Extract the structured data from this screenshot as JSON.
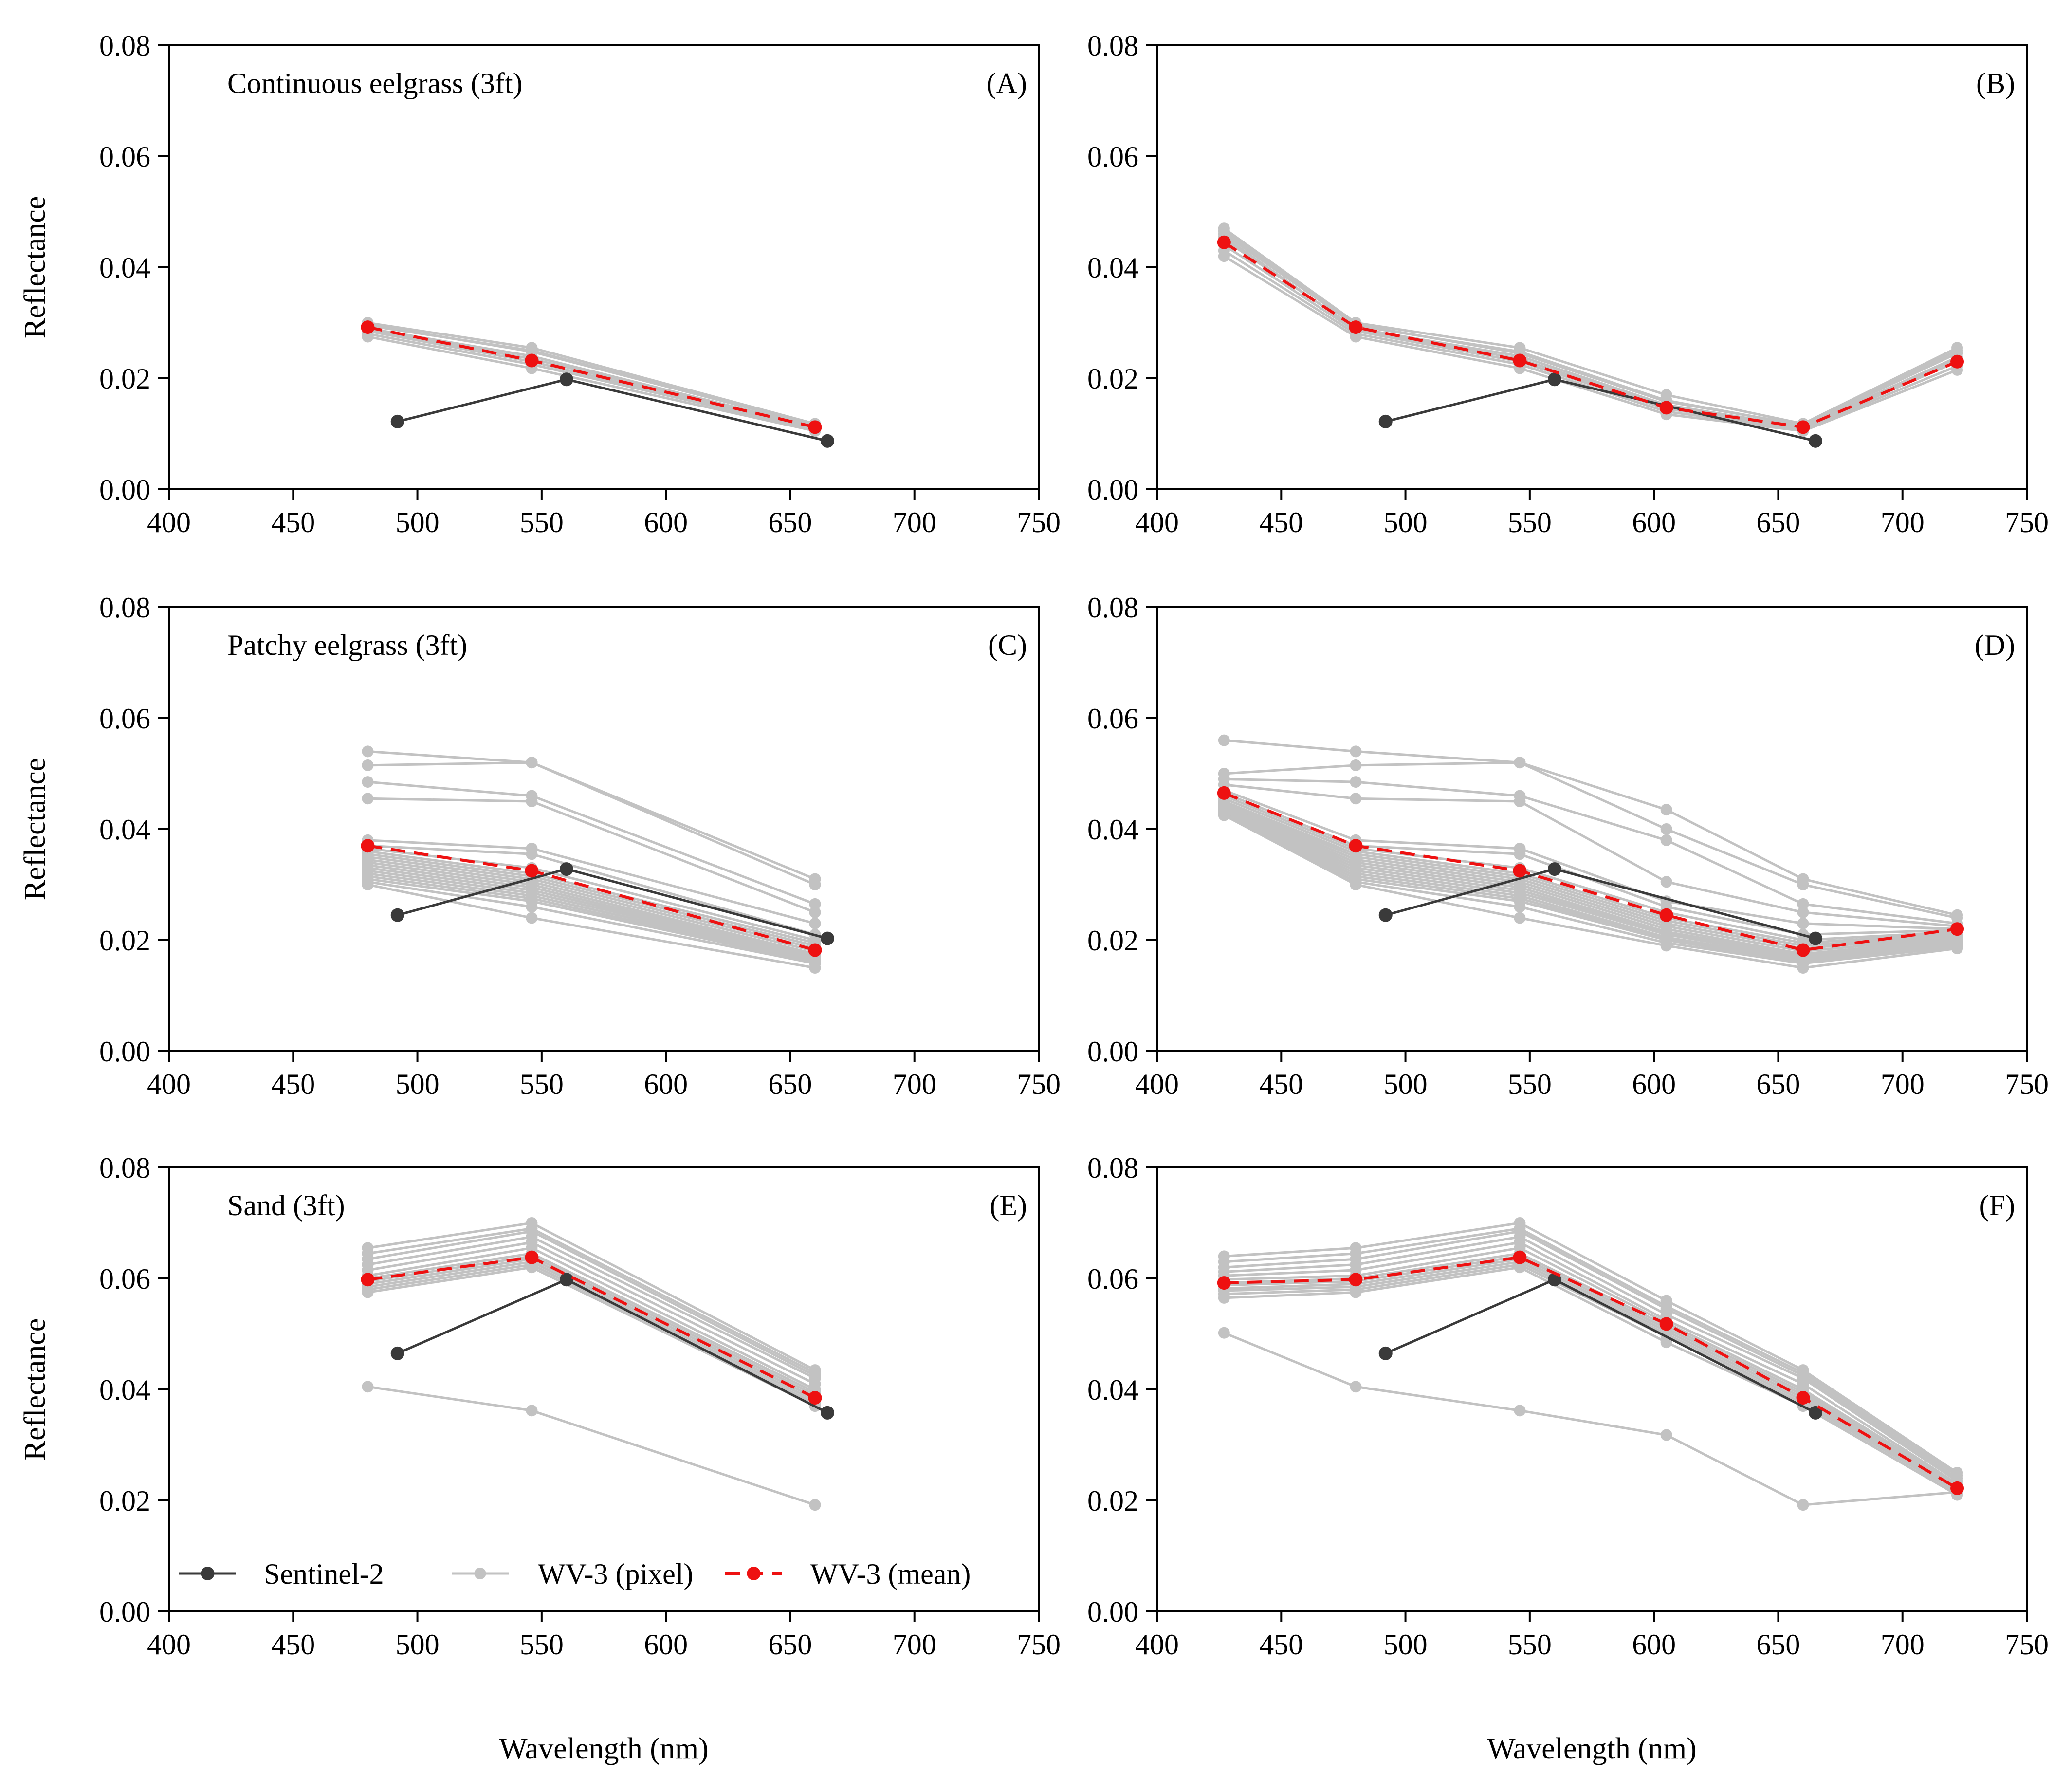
{
  "chart_data": [
    {
      "id": "A",
      "type": "line",
      "tag": "(A)",
      "title": "Continuous eelgrass (3ft)",
      "ylabel": "Reflectance",
      "xlabel": "",
      "xlim": [
        400,
        750
      ],
      "ylim": [
        0,
        0.08
      ],
      "xticks": [
        "400",
        "450",
        "500",
        "550",
        "600",
        "650",
        "700",
        "750"
      ],
      "yticks": [
        "0.00",
        "0.02",
        "0.04",
        "0.06",
        "0.08"
      ],
      "series": [
        {
          "name": "WV-3 (pixel)",
          "style": "pixel",
          "x": [
            480,
            546,
            660
          ],
          "lines": [
            [
              0.03,
              0.0255,
              0.0118
            ],
            [
              0.0295,
              0.025,
              0.0115
            ],
            [
              0.029,
              0.024,
              0.0112
            ],
            [
              0.0285,
              0.023,
              0.011
            ],
            [
              0.028,
              0.0225,
              0.0108
            ],
            [
              0.0275,
              0.0218,
              0.0105
            ],
            [
              0.0288,
              0.0235,
              0.0113
            ],
            [
              0.0297,
              0.0248,
              0.0116
            ]
          ]
        },
        {
          "name": "Sentinel-2",
          "style": "s2",
          "x": [
            492,
            560,
            665
          ],
          "values": [
            0.0122,
            0.0198,
            0.0087
          ]
        },
        {
          "name": "WV-3 (mean)",
          "style": "mean",
          "x": [
            480,
            546,
            660
          ],
          "values": [
            0.0292,
            0.0232,
            0.0112
          ]
        }
      ]
    },
    {
      "id": "B",
      "type": "line",
      "tag": "(B)",
      "title": "",
      "ylabel": "",
      "xlabel": "",
      "xlim": [
        400,
        750
      ],
      "ylim": [
        0,
        0.08
      ],
      "xticks": [
        "400",
        "450",
        "500",
        "550",
        "600",
        "650",
        "700",
        "750"
      ],
      "yticks": [
        "0.00",
        "0.02",
        "0.04",
        "0.06",
        "0.08"
      ],
      "series": [
        {
          "name": "WV-3 (pixel)",
          "style": "pixel",
          "x": [
            427,
            480,
            546,
            605,
            660,
            722
          ],
          "lines": [
            [
              0.047,
              0.03,
              0.0255,
              0.017,
              0.0118,
              0.0255
            ],
            [
              0.046,
              0.0295,
              0.0248,
              0.016,
              0.0115,
              0.0245
            ],
            [
              0.045,
              0.029,
              0.024,
              0.0152,
              0.0112,
              0.0238
            ],
            [
              0.044,
              0.0285,
              0.023,
              0.0145,
              0.011,
              0.023
            ],
            [
              0.043,
              0.028,
              0.0225,
              0.014,
              0.0108,
              0.0222
            ],
            [
              0.042,
              0.0275,
              0.0218,
              0.0135,
              0.0105,
              0.0215
            ],
            [
              0.0455,
              0.0288,
              0.0235,
              0.0148,
              0.0113,
              0.0235
            ],
            [
              0.0465,
              0.0297,
              0.0245,
              0.0158,
              0.0116,
              0.025
            ]
          ]
        },
        {
          "name": "Sentinel-2",
          "style": "s2",
          "x": [
            492,
            560,
            665
          ],
          "values": [
            0.0122,
            0.0198,
            0.0087
          ]
        },
        {
          "name": "WV-3 (mean)",
          "style": "mean",
          "x": [
            427,
            480,
            546,
            605,
            660,
            722
          ],
          "values": [
            0.0445,
            0.0292,
            0.0232,
            0.0147,
            0.0112,
            0.023
          ]
        }
      ]
    },
    {
      "id": "C",
      "type": "line",
      "tag": "(C)",
      "title": "Patchy eelgrass (3ft)",
      "ylabel": "Reflectance",
      "xlabel": "",
      "xlim": [
        400,
        750
      ],
      "ylim": [
        0,
        0.08
      ],
      "xticks": [
        "400",
        "450",
        "500",
        "550",
        "600",
        "650",
        "700",
        "750"
      ],
      "yticks": [
        "0.00",
        "0.02",
        "0.04",
        "0.06",
        "0.08"
      ],
      "series": [
        {
          "name": "WV-3 (pixel)",
          "style": "pixel",
          "x": [
            480,
            546,
            660
          ],
          "lines": [
            [
              0.054,
              0.052,
              0.031
            ],
            [
              0.0515,
              0.052,
              0.03
            ],
            [
              0.0485,
              0.046,
              0.0265
            ],
            [
              0.0455,
              0.045,
              0.025
            ],
            [
              0.038,
              0.0365,
              0.023
            ],
            [
              0.037,
              0.0355,
              0.021
            ],
            [
              0.0365,
              0.033,
              0.02
            ],
            [
              0.036,
              0.032,
              0.0195
            ],
            [
              0.0355,
              0.0315,
              0.019
            ],
            [
              0.035,
              0.031,
              0.0185
            ],
            [
              0.0345,
              0.0305,
              0.018
            ],
            [
              0.034,
              0.03,
              0.0175
            ],
            [
              0.0335,
              0.0295,
              0.0172
            ],
            [
              0.033,
              0.029,
              0.017
            ],
            [
              0.0325,
              0.0285,
              0.0168
            ],
            [
              0.032,
              0.028,
              0.0165
            ],
            [
              0.0315,
              0.0275,
              0.0162
            ],
            [
              0.031,
              0.027,
              0.016
            ],
            [
              0.0305,
              0.026,
              0.0158
            ],
            [
              0.03,
              0.024,
              0.015
            ]
          ]
        },
        {
          "name": "Sentinel-2",
          "style": "s2",
          "x": [
            492,
            560,
            665
          ],
          "values": [
            0.0245,
            0.0328,
            0.0203
          ]
        },
        {
          "name": "WV-3 (mean)",
          "style": "mean",
          "x": [
            480,
            546,
            660
          ],
          "values": [
            0.037,
            0.0325,
            0.0182
          ]
        }
      ]
    },
    {
      "id": "D",
      "type": "line",
      "tag": "(D)",
      "title": "",
      "ylabel": "",
      "xlabel": "",
      "xlim": [
        400,
        750
      ],
      "ylim": [
        0,
        0.08
      ],
      "xticks": [
        "400",
        "450",
        "500",
        "550",
        "600",
        "650",
        "700",
        "750"
      ],
      "yticks": [
        "0.00",
        "0.02",
        "0.04",
        "0.06",
        "0.08"
      ],
      "series": [
        {
          "name": "WV-3 (pixel)",
          "style": "pixel",
          "x": [
            427,
            480,
            546,
            605,
            660,
            722
          ],
          "lines": [
            [
              0.056,
              0.054,
              0.052,
              0.0435,
              0.031,
              0.0245
            ],
            [
              0.05,
              0.0515,
              0.052,
              0.04,
              0.03,
              0.024
            ],
            [
              0.049,
              0.0485,
              0.046,
              0.038,
              0.0265,
              0.023
            ],
            [
              0.048,
              0.0455,
              0.045,
              0.0305,
              0.025,
              0.0225
            ],
            [
              0.047,
              0.038,
              0.0365,
              0.027,
              0.023,
              0.022
            ],
            [
              0.0465,
              0.037,
              0.0355,
              0.026,
              0.021,
              0.0218
            ],
            [
              0.046,
              0.0365,
              0.033,
              0.025,
              0.02,
              0.0215
            ],
            [
              0.0455,
              0.036,
              0.032,
              0.024,
              0.0195,
              0.0212
            ],
            [
              0.045,
              0.0355,
              0.0315,
              0.0235,
              0.019,
              0.021
            ],
            [
              0.0448,
              0.035,
              0.031,
              0.023,
              0.0185,
              0.0208
            ],
            [
              0.0445,
              0.0345,
              0.0305,
              0.0225,
              0.018,
              0.0205
            ],
            [
              0.0442,
              0.034,
              0.03,
              0.022,
              0.0175,
              0.0202
            ],
            [
              0.044,
              0.0335,
              0.0295,
              0.0215,
              0.0172,
              0.02
            ],
            [
              0.0438,
              0.033,
              0.029,
              0.0212,
              0.017,
              0.0198
            ],
            [
              0.0436,
              0.0325,
              0.0285,
              0.021,
              0.0168,
              0.0196
            ],
            [
              0.0434,
              0.032,
              0.028,
              0.0205,
              0.0165,
              0.0194
            ],
            [
              0.0432,
              0.0315,
              0.0275,
              0.0202,
              0.0162,
              0.0192
            ],
            [
              0.043,
              0.031,
              0.027,
              0.02,
              0.016,
              0.019
            ],
            [
              0.0428,
              0.0305,
              0.026,
              0.0195,
              0.0158,
              0.0188
            ],
            [
              0.0425,
              0.03,
              0.024,
              0.019,
              0.015,
              0.0185
            ]
          ]
        },
        {
          "name": "Sentinel-2",
          "style": "s2",
          "x": [
            492,
            560,
            665
          ],
          "values": [
            0.0245,
            0.0328,
            0.0203
          ]
        },
        {
          "name": "WV-3 (mean)",
          "style": "mean",
          "x": [
            427,
            480,
            546,
            605,
            660,
            722
          ],
          "values": [
            0.0465,
            0.037,
            0.0325,
            0.0245,
            0.0182,
            0.022
          ]
        }
      ]
    },
    {
      "id": "E",
      "type": "line",
      "tag": "(E)",
      "title": "Sand (3ft)",
      "ylabel": "Reflectance",
      "xlabel": "Wavelength (nm)",
      "xlim": [
        400,
        750
      ],
      "ylim": [
        0,
        0.08
      ],
      "xticks": [
        "400",
        "450",
        "500",
        "550",
        "600",
        "650",
        "700",
        "750"
      ],
      "yticks": [
        "0.00",
        "0.02",
        "0.04",
        "0.06",
        "0.08"
      ],
      "series": [
        {
          "name": "WV-3 (pixel)",
          "style": "pixel",
          "x": [
            480,
            546,
            660
          ],
          "lines": [
            [
              0.0655,
              0.07,
              0.0435
            ],
            [
              0.0645,
              0.069,
              0.043
            ],
            [
              0.0635,
              0.0685,
              0.0425
            ],
            [
              0.0625,
              0.0675,
              0.042
            ],
            [
              0.0615,
              0.0665,
              0.041
            ],
            [
              0.0605,
              0.0655,
              0.04
            ],
            [
              0.06,
              0.0645,
              0.0395
            ],
            [
              0.0595,
              0.064,
              0.039
            ],
            [
              0.059,
              0.0635,
              0.0385
            ],
            [
              0.0585,
              0.063,
              0.038
            ],
            [
              0.058,
              0.0625,
              0.0375
            ],
            [
              0.0575,
              0.062,
              0.037
            ],
            [
              0.0405,
              0.0362,
              0.0192
            ]
          ]
        },
        {
          "name": "Sentinel-2",
          "style": "s2",
          "x": [
            492,
            560,
            665
          ],
          "values": [
            0.0465,
            0.0598,
            0.0358
          ]
        },
        {
          "name": "WV-3 (mean)",
          "style": "mean",
          "x": [
            480,
            546,
            660
          ],
          "values": [
            0.0598,
            0.0638,
            0.0385
          ]
        }
      ]
    },
    {
      "id": "F",
      "type": "line",
      "tag": "(F)",
      "title": "",
      "ylabel": "",
      "xlabel": "Wavelength (nm)",
      "xlim": [
        400,
        750
      ],
      "ylim": [
        0,
        0.08
      ],
      "xticks": [
        "400",
        "450",
        "500",
        "550",
        "600",
        "650",
        "700",
        "750"
      ],
      "yticks": [
        "0.00",
        "0.02",
        "0.04",
        "0.06",
        "0.08"
      ],
      "series": [
        {
          "name": "WV-3 (pixel)",
          "style": "pixel",
          "x": [
            427,
            480,
            546,
            605,
            660,
            722
          ],
          "lines": [
            [
              0.064,
              0.0655,
              0.07,
              0.056,
              0.0435,
              0.025
            ],
            [
              0.063,
              0.0645,
              0.069,
              0.055,
              0.043,
              0.0245
            ],
            [
              0.062,
              0.0635,
              0.0685,
              0.0545,
              0.0425,
              0.024
            ],
            [
              0.0612,
              0.0625,
              0.0675,
              0.0535,
              0.042,
              0.0235
            ],
            [
              0.0605,
              0.0615,
              0.0665,
              0.0525,
              0.041,
              0.023
            ],
            [
              0.0598,
              0.0605,
              0.0655,
              0.052,
              0.04,
              0.0228
            ],
            [
              0.0592,
              0.06,
              0.0645,
              0.0515,
              0.0395,
              0.0225
            ],
            [
              0.0588,
              0.0595,
              0.064,
              0.051,
              0.039,
              0.0222
            ],
            [
              0.0582,
              0.059,
              0.0635,
              0.0505,
              0.0385,
              0.022
            ],
            [
              0.0578,
              0.0585,
              0.063,
              0.05,
              0.038,
              0.0218
            ],
            [
              0.0572,
              0.058,
              0.0625,
              0.0495,
              0.0375,
              0.0215
            ],
            [
              0.0565,
              0.0575,
              0.062,
              0.0485,
              0.037,
              0.021
            ],
            [
              0.0502,
              0.0405,
              0.0362,
              0.0318,
              0.0192,
              0.0215
            ]
          ]
        },
        {
          "name": "Sentinel-2",
          "style": "s2",
          "x": [
            492,
            560,
            665
          ],
          "values": [
            0.0465,
            0.0598,
            0.0358
          ]
        },
        {
          "name": "WV-3 (mean)",
          "style": "mean",
          "x": [
            427,
            480,
            546,
            605,
            660,
            722
          ],
          "values": [
            0.0592,
            0.0598,
            0.0638,
            0.0518,
            0.0385,
            0.0222
          ]
        }
      ]
    }
  ],
  "legend": {
    "location": "bottom-left of panel E",
    "items": [
      {
        "label": "Sentinel-2",
        "style": "s2"
      },
      {
        "label": "WV-3 (pixel)",
        "style": "pixel"
      },
      {
        "label": "WV-3 (mean)",
        "style": "mean"
      }
    ]
  },
  "colors": {
    "sentinel2": "#3a3a3a",
    "pixel": "#c2c2c2",
    "mean": "#ee1111",
    "axis": "#000000"
  }
}
